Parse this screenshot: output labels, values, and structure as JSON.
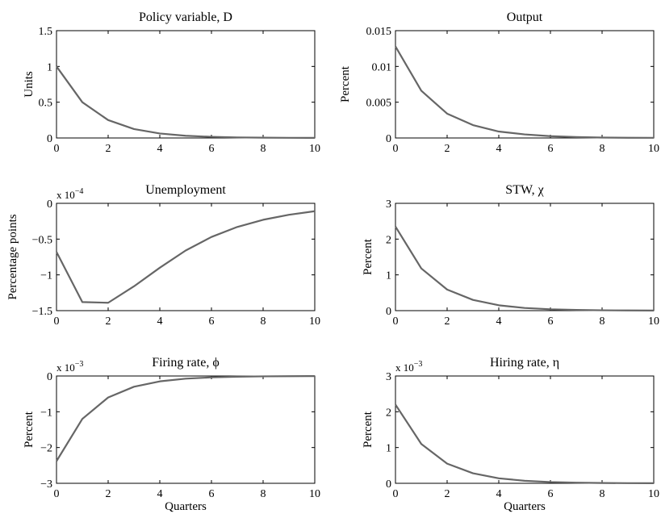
{
  "figure": {
    "x_axis_label": "Quarters"
  },
  "chart_data": [
    {
      "type": "line",
      "title": "Policy variable, D",
      "ylabel": "Units",
      "xlabel": "",
      "x": [
        0,
        1,
        2,
        3,
        4,
        5,
        6,
        7,
        8,
        9,
        10
      ],
      "values": [
        1.0,
        0.5,
        0.25,
        0.125,
        0.0625,
        0.031,
        0.016,
        0.008,
        0.004,
        0.002,
        0.001
      ],
      "xlim": [
        0,
        10
      ],
      "ylim": [
        0,
        1.5
      ],
      "xticks": [
        0,
        2,
        4,
        6,
        8,
        10
      ],
      "yticks": [
        {
          "v": 0,
          "label": "0"
        },
        {
          "v": 0.5,
          "label": "0.5"
        },
        {
          "v": 1,
          "label": "1"
        },
        {
          "v": 1.5,
          "label": "1.5"
        }
      ],
      "exponent": "",
      "line_color": "#666666"
    },
    {
      "type": "line",
      "title": "Output",
      "ylabel": "Percent",
      "xlabel": "",
      "x": [
        0,
        1,
        2,
        3,
        4,
        5,
        6,
        7,
        8,
        9,
        10
      ],
      "values": [
        0.0128,
        0.0066,
        0.0034,
        0.0018,
        0.0009,
        0.0005,
        0.00025,
        0.00013,
        6e-05,
        3e-05,
        2e-05
      ],
      "xlim": [
        0,
        10
      ],
      "ylim": [
        0,
        0.015
      ],
      "xticks": [
        0,
        2,
        4,
        6,
        8,
        10
      ],
      "yticks": [
        {
          "v": 0,
          "label": "0"
        },
        {
          "v": 0.005,
          "label": "0.005"
        },
        {
          "v": 0.01,
          "label": "0.01"
        },
        {
          "v": 0.015,
          "label": "0.015"
        }
      ],
      "exponent": "",
      "line_color": "#666666"
    },
    {
      "type": "line",
      "title": "Unemployment",
      "ylabel": "Percentage points",
      "xlabel": "",
      "x": [
        0,
        1,
        2,
        3,
        4,
        5,
        6,
        7,
        8,
        9,
        10
      ],
      "values": [
        -0.68,
        -1.38,
        -1.39,
        -1.16,
        -0.9,
        -0.66,
        -0.47,
        -0.33,
        -0.23,
        -0.16,
        -0.11
      ],
      "xlim": [
        0,
        10
      ],
      "ylim": [
        -1.5,
        0
      ],
      "xticks": [
        0,
        2,
        4,
        6,
        8,
        10
      ],
      "yticks": [
        {
          "v": -1.5,
          "label": "−1.5"
        },
        {
          "v": -1,
          "label": "−1"
        },
        {
          "v": -0.5,
          "label": "−0.5"
        },
        {
          "v": 0,
          "label": "0"
        }
      ],
      "exponent": {
        "base": "x 10",
        "power": "−4"
      },
      "line_color": "#666666"
    },
    {
      "type": "line",
      "title": "STW, χ",
      "ylabel": "Percent",
      "xlabel": "",
      "x": [
        0,
        1,
        2,
        3,
        4,
        5,
        6,
        7,
        8,
        9,
        10
      ],
      "values": [
        2.35,
        1.18,
        0.59,
        0.3,
        0.15,
        0.075,
        0.038,
        0.019,
        0.01,
        0.005,
        0.002
      ],
      "xlim": [
        0,
        10
      ],
      "ylim": [
        0,
        3
      ],
      "xticks": [
        0,
        2,
        4,
        6,
        8,
        10
      ],
      "yticks": [
        {
          "v": 0,
          "label": "0"
        },
        {
          "v": 1,
          "label": "1"
        },
        {
          "v": 2,
          "label": "2"
        },
        {
          "v": 3,
          "label": "3"
        }
      ],
      "exponent": "",
      "line_color": "#666666"
    },
    {
      "type": "line",
      "title": "Firing rate, ϕ",
      "ylabel": "Percent",
      "xlabel": "Quarters",
      "x": [
        0,
        1,
        2,
        3,
        4,
        5,
        6,
        7,
        8,
        9,
        10
      ],
      "values": [
        -2.38,
        -1.2,
        -0.6,
        -0.3,
        -0.15,
        -0.075,
        -0.038,
        -0.019,
        -0.01,
        -0.005,
        -0.002
      ],
      "xlim": [
        0,
        10
      ],
      "ylim": [
        -3,
        0
      ],
      "xticks": [
        0,
        2,
        4,
        6,
        8,
        10
      ],
      "yticks": [
        {
          "v": -3,
          "label": "−3"
        },
        {
          "v": -2,
          "label": "−2"
        },
        {
          "v": -1,
          "label": "−1"
        },
        {
          "v": 0,
          "label": "0"
        }
      ],
      "exponent": {
        "base": "x 10",
        "power": "−3"
      },
      "line_color": "#666666"
    },
    {
      "type": "line",
      "title": "Hiring rate, η",
      "ylabel": "Percent",
      "xlabel": "Quarters",
      "x": [
        0,
        1,
        2,
        3,
        4,
        5,
        6,
        7,
        8,
        9,
        10
      ],
      "values": [
        2.2,
        1.1,
        0.55,
        0.28,
        0.14,
        0.07,
        0.035,
        0.018,
        0.009,
        0.004,
        0.002
      ],
      "xlim": [
        0,
        10
      ],
      "ylim": [
        0,
        3
      ],
      "xticks": [
        0,
        2,
        4,
        6,
        8,
        10
      ],
      "yticks": [
        {
          "v": 0,
          "label": "0"
        },
        {
          "v": 1,
          "label": "1"
        },
        {
          "v": 2,
          "label": "2"
        },
        {
          "v": 3,
          "label": "3"
        }
      ],
      "exponent": {
        "base": "x 10",
        "power": "−3"
      },
      "line_color": "#666666"
    }
  ]
}
